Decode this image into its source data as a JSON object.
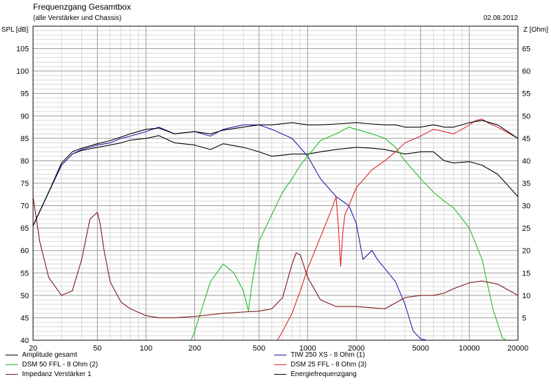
{
  "header": {
    "title": "Frequenzgang Gesamtbox",
    "subtitle": "(alle Verstärker und Chassis)",
    "date": "02.08.2012"
  },
  "chart_data": {
    "type": "line",
    "title": "Frequenzgang Gesamtbox",
    "subtitle": "(alle Verstärker und Chassis)",
    "ylabel": "SPL [dB]",
    "y2label": "Z [Ohm]",
    "xscale": "log",
    "xlim": [
      20,
      20000
    ],
    "ylim": [
      40,
      110
    ],
    "y2lim": [
      0,
      70
    ],
    "grid": true,
    "x_ticks": [
      20,
      50,
      100,
      200,
      500,
      1000,
      2000,
      5000,
      10000,
      20000
    ],
    "x_tick_labels": [
      "20",
      "50",
      "100",
      "200",
      "500",
      "1000",
      "2000",
      "5000",
      "10000",
      "20000"
    ],
    "y_ticks": [
      40,
      45,
      50,
      55,
      60,
      65,
      70,
      75,
      80,
      85,
      90,
      95,
      100,
      105
    ],
    "y_tick_labels": [
      "40",
      "45",
      "50",
      "55",
      "60",
      "65",
      "70",
      "75",
      "80",
      "85",
      "90",
      "95",
      "100",
      "105"
    ],
    "y2_ticks": [
      5,
      10,
      15,
      20,
      25,
      30,
      35,
      40,
      45,
      50,
      55,
      60,
      65
    ],
    "y2_tick_labels": [
      "5",
      "10",
      "15",
      "20",
      "25",
      "30",
      "35",
      "40",
      "45",
      "50",
      "55",
      "60",
      "65"
    ],
    "legend_placement": "bottom",
    "series": [
      {
        "name": "Amplitude gesamt",
        "color": "#000000",
        "x": [
          20,
          25,
          30,
          35,
          40,
          50,
          60,
          70,
          80,
          100,
          120,
          150,
          200,
          250,
          300,
          400,
          500,
          600,
          800,
          1000,
          1200,
          1500,
          2000,
          2500,
          3000,
          3500,
          4000,
          5000,
          6000,
          7000,
          8000,
          10000,
          12000,
          15000,
          20000
        ],
        "y": [
          65.5,
          73,
          79,
          81.5,
          82.3,
          83,
          83.5,
          84,
          84.6,
          85,
          85.6,
          84,
          83.5,
          82.5,
          83.8,
          83,
          82,
          81,
          81.5,
          81.5,
          82,
          82.5,
          83,
          82.8,
          82.5,
          82,
          81.5,
          82,
          82,
          80,
          79.5,
          79.8,
          79,
          77,
          72
        ]
      },
      {
        "name": "TIW 250 XS - 8 Ohm (1)",
        "color": "#1a1aa8",
        "x": [
          20,
          25,
          30,
          35,
          40,
          50,
          60,
          70,
          80,
          100,
          120,
          150,
          200,
          250,
          300,
          400,
          500,
          600,
          800,
          1000,
          1200,
          1500,
          1800,
          2000,
          2200,
          2500,
          2700,
          3000,
          3500,
          4000,
          4500,
          5000,
          5500
        ],
        "y": [
          65.5,
          73,
          79,
          81.5,
          82.5,
          83.5,
          84,
          85,
          85.5,
          86.5,
          87.5,
          86,
          86.5,
          85.5,
          87,
          88,
          88,
          87,
          85,
          81,
          76,
          72,
          70,
          66,
          58,
          60,
          58,
          56,
          53,
          48,
          42,
          40.3,
          40
        ]
      },
      {
        "name": "DSM 50 FFL - 8 Ohm (2)",
        "color": "#22bb22",
        "x": [
          190,
          200,
          250,
          300,
          350,
          400,
          430,
          450,
          500,
          600,
          700,
          800,
          900,
          1000,
          1200,
          1500,
          1800,
          2000,
          2500,
          3000,
          3500,
          4000,
          5000,
          6000,
          7000,
          8000,
          10000,
          12000,
          14000,
          16000,
          17000
        ],
        "y": [
          40,
          42,
          53,
          57,
          55,
          51,
          46.5,
          52,
          62,
          68,
          73,
          76,
          79,
          81,
          84.5,
          86,
          87.5,
          87,
          86,
          85,
          83,
          80,
          76,
          73,
          71,
          69.5,
          65,
          58,
          47,
          40.5,
          40
        ]
      },
      {
        "name": "DSM 25 FFL - 8 Ohm (3)",
        "color": "#dd2222",
        "x": [
          650,
          700,
          800,
          900,
          1000,
          1200,
          1400,
          1500,
          1550,
          1600,
          1650,
          1700,
          1800,
          2000,
          2500,
          3000,
          3500,
          4000,
          5000,
          6000,
          7000,
          8000,
          9000,
          10000,
          11000,
          12000,
          13000,
          15000,
          20000
        ],
        "y": [
          40,
          42,
          46,
          51,
          56,
          63,
          69,
          72,
          65,
          56.5,
          64,
          68,
          70,
          74,
          78,
          80,
          82,
          84,
          85.5,
          87,
          86.5,
          86,
          87,
          88,
          89,
          89.3,
          88.5,
          87.5,
          85
        ]
      },
      {
        "name": "Impedanz Verstärker 1",
        "color": "#7a1515",
        "axis": "right",
        "x": [
          20,
          22,
          25,
          30,
          35,
          40,
          45,
          50,
          52,
          55,
          60,
          70,
          80,
          100,
          120,
          150,
          200,
          300,
          400,
          500,
          600,
          700,
          800,
          850,
          900,
          1000,
          1200,
          1500,
          2000,
          3000,
          4000,
          5000,
          6000,
          7000,
          8000,
          10000,
          12000,
          15000,
          20000
        ],
        "y": [
          32,
          22,
          14,
          10,
          11,
          18,
          27,
          28.5,
          26,
          20,
          13,
          8.5,
          7,
          5.5,
          5,
          5,
          5.3,
          6,
          6.3,
          6.5,
          7,
          9.5,
          17,
          19.5,
          19,
          14,
          9,
          7.5,
          7.5,
          7,
          9.5,
          10,
          10,
          10.5,
          11.5,
          12.8,
          13.2,
          12.5,
          10
        ]
      },
      {
        "name": "Energiefrequenzgang",
        "color": "#000000",
        "x": [
          20,
          25,
          30,
          35,
          40,
          50,
          60,
          70,
          80,
          100,
          120,
          150,
          200,
          250,
          300,
          400,
          500,
          600,
          800,
          1000,
          1200,
          1500,
          2000,
          2500,
          3000,
          3500,
          4000,
          5000,
          6000,
          7000,
          8000,
          10000,
          12000,
          15000,
          20000
        ],
        "y": [
          65.5,
          73,
          79.5,
          82,
          82.8,
          83.8,
          84.5,
          85.3,
          86,
          87,
          87.3,
          86,
          86.5,
          86,
          86.8,
          87.5,
          88,
          88,
          88.5,
          88,
          88,
          88.2,
          88.5,
          88.2,
          88,
          88,
          87.5,
          87.5,
          88,
          87.5,
          87.5,
          88.5,
          89,
          88,
          85
        ]
      }
    ]
  }
}
